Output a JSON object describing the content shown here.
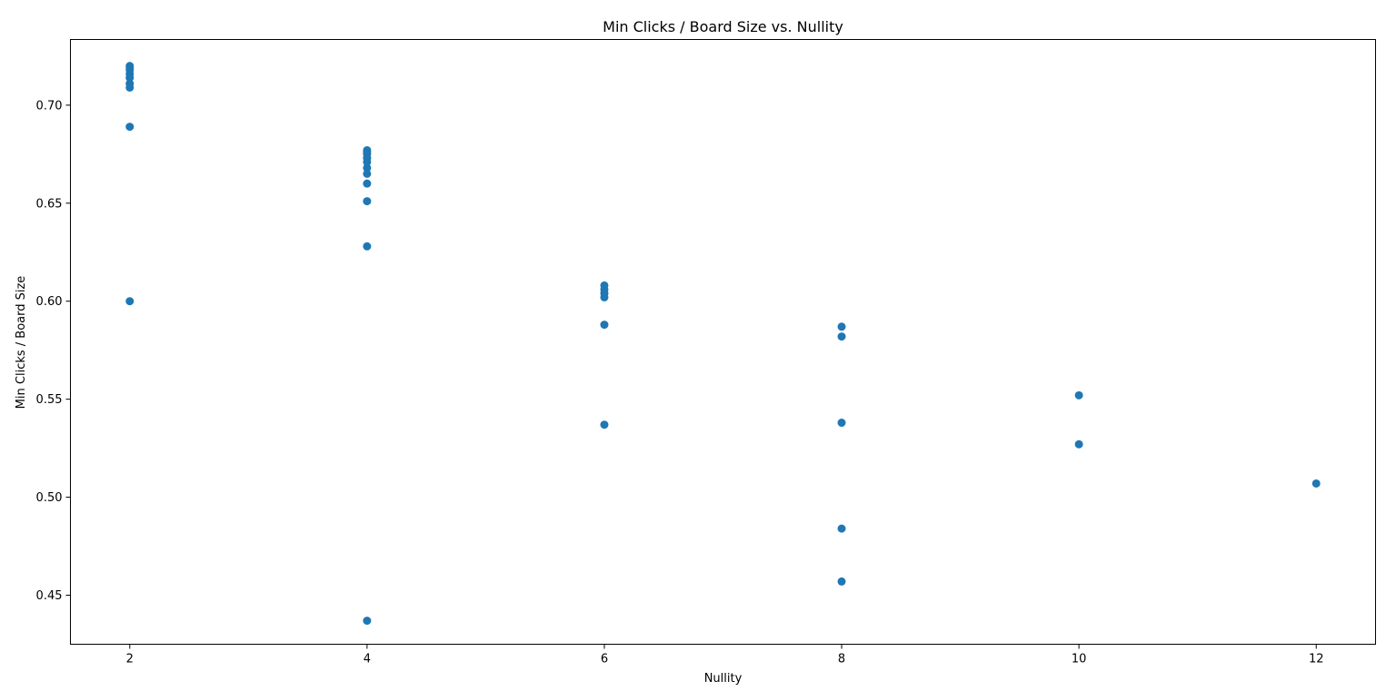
{
  "chart_data": {
    "type": "scatter",
    "title": "Min Clicks / Board Size vs. Nullity",
    "xlabel": "Nullity",
    "ylabel": "Min Clicks / Board Size",
    "xlim": [
      1.5,
      12.5
    ],
    "ylim": [
      0.425,
      0.7335
    ],
    "xticks": [
      2,
      4,
      6,
      8,
      10,
      12
    ],
    "xtick_labels": [
      "2",
      "4",
      "6",
      "8",
      "10",
      "12"
    ],
    "yticks": [
      0.45,
      0.5,
      0.55,
      0.6,
      0.65,
      0.7
    ],
    "ytick_labels": [
      "0.45",
      "0.50",
      "0.55",
      "0.60",
      "0.65",
      "0.70"
    ],
    "grid": false,
    "marker_color": "#1f77b4",
    "points": [
      {
        "x": 2,
        "y": 0.72
      },
      {
        "x": 2,
        "y": 0.719
      },
      {
        "x": 2,
        "y": 0.718
      },
      {
        "x": 2,
        "y": 0.716
      },
      {
        "x": 2,
        "y": 0.714
      },
      {
        "x": 2,
        "y": 0.711
      },
      {
        "x": 2,
        "y": 0.709
      },
      {
        "x": 2,
        "y": 0.689
      },
      {
        "x": 2,
        "y": 0.6
      },
      {
        "x": 4,
        "y": 0.677
      },
      {
        "x": 4,
        "y": 0.676
      },
      {
        "x": 4,
        "y": 0.675
      },
      {
        "x": 4,
        "y": 0.673
      },
      {
        "x": 4,
        "y": 0.671
      },
      {
        "x": 4,
        "y": 0.668
      },
      {
        "x": 4,
        "y": 0.665
      },
      {
        "x": 4,
        "y": 0.66
      },
      {
        "x": 4,
        "y": 0.651
      },
      {
        "x": 4,
        "y": 0.628
      },
      {
        "x": 4,
        "y": 0.437
      },
      {
        "x": 6,
        "y": 0.608
      },
      {
        "x": 6,
        "y": 0.606
      },
      {
        "x": 6,
        "y": 0.604
      },
      {
        "x": 6,
        "y": 0.602
      },
      {
        "x": 6,
        "y": 0.588
      },
      {
        "x": 6,
        "y": 0.537
      },
      {
        "x": 8,
        "y": 0.587
      },
      {
        "x": 8,
        "y": 0.582
      },
      {
        "x": 8,
        "y": 0.538
      },
      {
        "x": 8,
        "y": 0.484
      },
      {
        "x": 8,
        "y": 0.457
      },
      {
        "x": 10,
        "y": 0.552
      },
      {
        "x": 10,
        "y": 0.527
      },
      {
        "x": 12,
        "y": 0.507
      }
    ]
  }
}
